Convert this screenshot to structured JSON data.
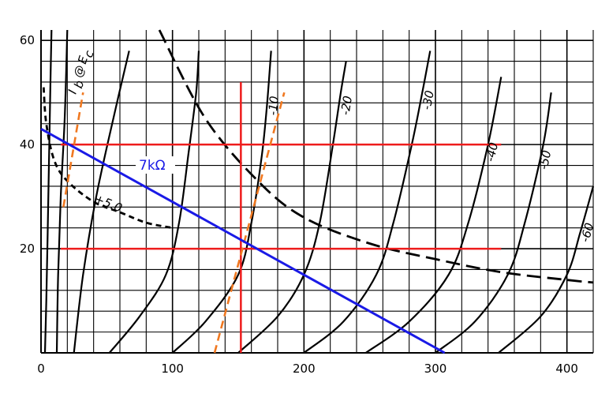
{
  "chart_data": {
    "type": "line",
    "title": "",
    "xlabel": "",
    "ylabel": "",
    "xlim": [
      0,
      420
    ],
    "ylim": [
      0,
      62
    ],
    "x_ticks": [
      0,
      100,
      200,
      300,
      400
    ],
    "y_ticks": [
      20,
      40,
      60
    ],
    "grid": true,
    "colors": {
      "grid": "#000000",
      "curves": "#000000",
      "load_line": "#1a1ae6",
      "operating_lines": "#ee1c1c",
      "dashed_guides": "#f07820"
    },
    "curve_label_parts": [
      "I",
      "b",
      "@",
      "E",
      "c"
    ],
    "curves": [
      {
        "label": "",
        "points": [
          [
            3,
            0
          ],
          [
            4,
            10
          ],
          [
            5,
            22
          ],
          [
            6,
            36
          ],
          [
            7,
            50
          ],
          [
            8,
            62
          ]
        ]
      },
      {
        "label": "",
        "points": [
          [
            12,
            0
          ],
          [
            13,
            15
          ],
          [
            15,
            30
          ],
          [
            18,
            45
          ],
          [
            20,
            62
          ]
        ]
      },
      {
        "label": "",
        "points": [
          [
            25,
            0
          ],
          [
            32,
            15
          ],
          [
            42,
            30
          ],
          [
            55,
            45
          ],
          [
            67,
            58
          ]
        ]
      },
      {
        "label": "+5.0",
        "points": [
          [
            52,
            0
          ],
          [
            75,
            7
          ],
          [
            95,
            15
          ],
          [
            105,
            25
          ],
          [
            112,
            38
          ],
          [
            118,
            50
          ],
          [
            120,
            58
          ]
        ]
      },
      {
        "label": "-10",
        "points": [
          [
            100,
            0
          ],
          [
            125,
            6
          ],
          [
            150,
            15
          ],
          [
            160,
            25
          ],
          [
            168,
            38
          ],
          [
            172,
            48
          ],
          [
            175,
            58
          ]
        ]
      },
      {
        "label": "-20",
        "points": [
          [
            150,
            0
          ],
          [
            180,
            7
          ],
          [
            200,
            15
          ],
          [
            212,
            25
          ],
          [
            222,
            40
          ],
          [
            228,
            50
          ],
          [
            232,
            56
          ]
        ]
      },
      {
        "label": "-30",
        "points": [
          [
            200,
            0
          ],
          [
            230,
            6
          ],
          [
            255,
            15
          ],
          [
            268,
            25
          ],
          [
            282,
            40
          ],
          [
            290,
            50
          ],
          [
            296,
            58
          ]
        ]
      },
      {
        "label": "-40",
        "points": [
          [
            247,
            0
          ],
          [
            280,
            6
          ],
          [
            310,
            15
          ],
          [
            325,
            25
          ],
          [
            340,
            40
          ],
          [
            350,
            53
          ]
        ]
      },
      {
        "label": "-50",
        "points": [
          [
            300,
            0
          ],
          [
            330,
            6
          ],
          [
            355,
            15
          ],
          [
            368,
            25
          ],
          [
            382,
            40
          ],
          [
            388,
            50
          ]
        ]
      },
      {
        "label": "-60",
        "points": [
          [
            348,
            0
          ],
          [
            380,
            7
          ],
          [
            400,
            15
          ],
          [
            410,
            23
          ],
          [
            420,
            32
          ]
        ]
      }
    ],
    "dissipation_curve": {
      "style": "long-dash",
      "points": [
        [
          90,
          62
        ],
        [
          125,
          45
        ],
        [
          165,
          33
        ],
        [
          200,
          26
        ],
        [
          250,
          21
        ],
        [
          300,
          18
        ],
        [
          350,
          15.5
        ],
        [
          400,
          14
        ],
        [
          420,
          13.5
        ]
      ]
    },
    "small_dash_curve": {
      "style": "short-dash",
      "points": [
        [
          2,
          51
        ],
        [
          4,
          44
        ],
        [
          10,
          37
        ],
        [
          20,
          33
        ],
        [
          40,
          29
        ],
        [
          60,
          27
        ],
        [
          80,
          25
        ],
        [
          100,
          24
        ]
      ]
    },
    "load_line": {
      "label": "7kΩ",
      "points": [
        [
          0,
          43
        ],
        [
          307,
          0
        ]
      ]
    },
    "operating_lines": {
      "horizontal_y": [
        40,
        20
      ],
      "horizontal_x_range": [
        15,
        350
      ],
      "vertical_x": 152,
      "vertical_y_range": [
        0,
        52
      ]
    },
    "dashed_guides": [
      {
        "points": [
          [
            17,
            28
          ],
          [
            32,
            50
          ]
        ]
      },
      {
        "points": [
          [
            132,
            0
          ],
          [
            185,
            50
          ]
        ]
      }
    ]
  }
}
